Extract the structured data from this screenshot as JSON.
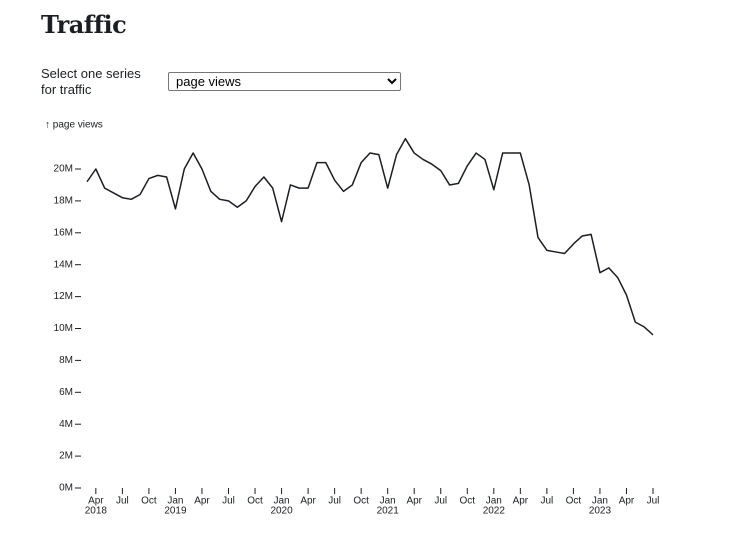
{
  "header": {
    "title": "Traffic"
  },
  "controls": {
    "label": "Select one series for traffic",
    "selected": "page views"
  },
  "chart_data": {
    "type": "line",
    "ylabel": "↑ page views",
    "x": [
      "2018-03",
      "2018-04",
      "2018-05",
      "2018-06",
      "2018-07",
      "2018-08",
      "2018-09",
      "2018-10",
      "2018-11",
      "2018-12",
      "2019-01",
      "2019-02",
      "2019-03",
      "2019-04",
      "2019-05",
      "2019-06",
      "2019-07",
      "2019-08",
      "2019-09",
      "2019-10",
      "2019-11",
      "2019-12",
      "2020-01",
      "2020-02",
      "2020-03",
      "2020-04",
      "2020-05",
      "2020-06",
      "2020-07",
      "2020-08",
      "2020-09",
      "2020-10",
      "2020-11",
      "2020-12",
      "2021-01",
      "2021-02",
      "2021-03",
      "2021-04",
      "2021-05",
      "2021-06",
      "2021-07",
      "2021-08",
      "2021-09",
      "2021-10",
      "2021-11",
      "2021-12",
      "2022-01",
      "2022-02",
      "2022-03",
      "2022-04",
      "2022-05",
      "2022-06",
      "2022-07",
      "2022-08",
      "2022-09",
      "2022-10",
      "2022-11",
      "2022-12",
      "2023-01",
      "2023-02",
      "2023-03",
      "2023-04",
      "2023-05",
      "2023-06",
      "2023-07"
    ],
    "series": [
      {
        "name": "page views",
        "color": "#1b1e23",
        "values": [
          19200000,
          20000000,
          18800000,
          18500000,
          18200000,
          18100000,
          18400000,
          19400000,
          19600000,
          19500000,
          17500000,
          20000000,
          21000000,
          20000000,
          18600000,
          18100000,
          18000000,
          17600000,
          18000000,
          18900000,
          19500000,
          18800000,
          16700000,
          19000000,
          18800000,
          18800000,
          20400000,
          20400000,
          19300000,
          18600000,
          19000000,
          20400000,
          21000000,
          20900000,
          18800000,
          20900000,
          21900000,
          21000000,
          20600000,
          20300000,
          19900000,
          19000000,
          19100000,
          20200000,
          21000000,
          20600000,
          18700000,
          21000000,
          21000000,
          21000000,
          19000000,
          15700000,
          14900000,
          14800000,
          14700000,
          15300000,
          15800000,
          15900000,
          13500000,
          13800000,
          13200000,
          12100000,
          10400000,
          10100000,
          9600000
        ]
      }
    ],
    "xlim": [
      "2018-03",
      "2023-07"
    ],
    "xticks": [
      {
        "value": "2018-04",
        "label": "Apr"
      },
      {
        "value": "2018-07",
        "label": "Jul"
      },
      {
        "value": "2018-10",
        "label": "Oct"
      },
      {
        "value": "2019-01",
        "label": "Jan"
      },
      {
        "value": "2019-04",
        "label": "Apr"
      },
      {
        "value": "2019-07",
        "label": "Jul"
      },
      {
        "value": "2019-10",
        "label": "Oct"
      },
      {
        "value": "2020-01",
        "label": "Jan"
      },
      {
        "value": "2020-04",
        "label": "Apr"
      },
      {
        "value": "2020-07",
        "label": "Jul"
      },
      {
        "value": "2020-10",
        "label": "Oct"
      },
      {
        "value": "2021-01",
        "label": "Jan"
      },
      {
        "value": "2021-04",
        "label": "Apr"
      },
      {
        "value": "2021-07",
        "label": "Jul"
      },
      {
        "value": "2021-10",
        "label": "Oct"
      },
      {
        "value": "2022-01",
        "label": "Jan"
      },
      {
        "value": "2022-04",
        "label": "Apr"
      },
      {
        "value": "2022-07",
        "label": "Jul"
      },
      {
        "value": "2022-10",
        "label": "Oct"
      },
      {
        "value": "2023-01",
        "label": "Jan"
      },
      {
        "value": "2023-04",
        "label": "Apr"
      },
      {
        "value": "2023-07",
        "label": "Jul"
      }
    ],
    "xtick_years": [
      {
        "value": "2018-04",
        "label": "2018"
      },
      {
        "value": "2019-01",
        "label": "2019"
      },
      {
        "value": "2020-01",
        "label": "2020"
      },
      {
        "value": "2021-01",
        "label": "2021"
      },
      {
        "value": "2022-01",
        "label": "2022"
      },
      {
        "value": "2023-01",
        "label": "2023"
      }
    ],
    "ylim": [
      0,
      20000000
    ],
    "yticks": [
      {
        "value": 0,
        "label": "0M"
      },
      {
        "value": 2000000,
        "label": "2M"
      },
      {
        "value": 4000000,
        "label": "4M"
      },
      {
        "value": 6000000,
        "label": "6M"
      },
      {
        "value": 8000000,
        "label": "8M"
      },
      {
        "value": 10000000,
        "label": "10M"
      },
      {
        "value": 12000000,
        "label": "12M"
      },
      {
        "value": 14000000,
        "label": "14M"
      },
      {
        "value": 16000000,
        "label": "16M"
      },
      {
        "value": 18000000,
        "label": "18M"
      },
      {
        "value": 20000000,
        "label": "20M"
      }
    ],
    "grid": false
  }
}
